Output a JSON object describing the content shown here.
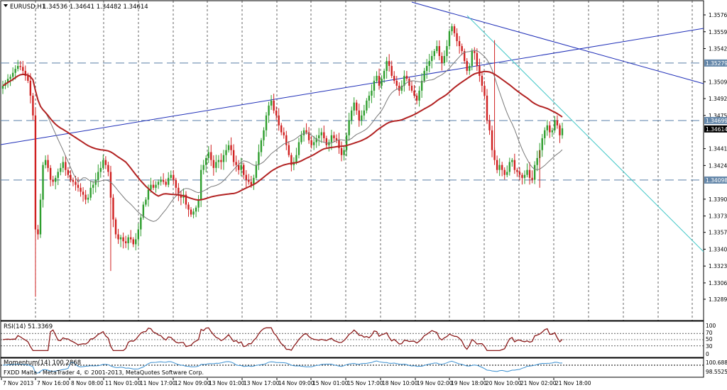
{
  "header": {
    "symbol_label": "EURUSD,H1",
    "ohlc_label": "1.34536 1.34641 1.34482 1.34614"
  },
  "rsi_panel": {
    "label": "RSI(14) 51.3369",
    "levels": [
      "100",
      "70",
      "50",
      "30",
      "0"
    ]
  },
  "momentum_panel": {
    "label": "Momentum(14) 100.2868",
    "levels": [
      "100.6887",
      "98.5525"
    ]
  },
  "copyright": "FXDD Malta - MetaTrader 4, © 2001-2013, MetaQuotes Software Corp.",
  "colors": {
    "candles": "#2e9e2e",
    "candles_down": "#d02020",
    "ma_slow": "#b22222",
    "ma_fast": "#7a7a7a",
    "trend_blue": "#1f2fb8",
    "trend_cyan": "#45c8c8",
    "hline": "#5a7fa8",
    "rsi_line": "#8b1a1a",
    "momentum_line": "#3a8fd0"
  },
  "chart_data": {
    "type": "candlestick",
    "symbol": "EURUSD",
    "timeframe": "H1",
    "ylim": [
      1.3282,
      1.3585
    ],
    "price_ticks": [
      1.35765,
      1.35595,
      1.35425,
      1.3509,
      1.3492,
      1.3475,
      1.34415,
      1.34245,
      1.33905,
      1.33735,
      1.3357,
      1.334,
      1.3323,
      1.3306,
      1.32895
    ],
    "highlighted_levels": [
      {
        "label": "1.35279",
        "value": 1.35279,
        "style": "boxed"
      },
      {
        "label": "1.34699",
        "value": 1.34699,
        "style": "boxed"
      },
      {
        "label": "1.34614",
        "value": 1.34614,
        "style": "current"
      },
      {
        "label": "1.34098",
        "value": 1.34098,
        "style": "boxed"
      }
    ],
    "x_labels": [
      "7 Nov 2013",
      "7 Nov 16:00",
      "8 Nov 08:00",
      "11 Nov 01:00",
      "11 Nov 17:00",
      "12 Nov 09:00",
      "13 Nov 01:00",
      "13 Nov 17:00",
      "14 Nov 09:00",
      "15 Nov 01:00",
      "15 Nov 17:00",
      "18 Nov 10:00",
      "19 Nov 02:00",
      "19 Nov 18:00",
      "20 Nov 10:00",
      "21 Nov 02:00",
      "21 Nov 18:00"
    ],
    "close_path": [
      1.3505,
      1.3508,
      1.3512,
      1.3514,
      1.3518,
      1.3522,
      1.3525,
      1.3524,
      1.352,
      1.3515,
      1.351,
      1.3495,
      1.3475,
      1.336,
      1.3355,
      1.339,
      1.3425,
      1.343,
      1.3422,
      1.341,
      1.3408,
      1.3412,
      1.3418,
      1.3422,
      1.3428,
      1.342,
      1.3415,
      1.341,
      1.3408,
      1.3405,
      1.3402,
      1.3398,
      1.3395,
      1.339,
      1.3392,
      1.3402,
      1.3405,
      1.341,
      1.3418,
      1.3422,
      1.343,
      1.3425,
      1.3418,
      1.3392,
      1.337,
      1.3355,
      1.335,
      1.3352,
      1.3348,
      1.3346,
      1.3352,
      1.335,
      1.3345,
      1.335,
      1.336,
      1.3372,
      1.3385,
      1.339,
      1.34,
      1.3405,
      1.3402,
      1.3405,
      1.3408,
      1.341,
      1.3408,
      1.3405,
      1.3412,
      1.3415,
      1.341,
      1.3402,
      1.3395,
      1.3392,
      1.3395,
      1.3385,
      1.338,
      1.3375,
      1.3378,
      1.3382,
      1.339,
      1.342,
      1.3425,
      1.3432,
      1.3438,
      1.343,
      1.3422,
      1.3428,
      1.343,
      1.3428,
      1.3435,
      1.344,
      1.3445,
      1.344,
      1.3428,
      1.3425,
      1.342,
      1.3425,
      1.3415,
      1.341,
      1.3408,
      1.3405,
      1.3412,
      1.3425,
      1.3438,
      1.345,
      1.346,
      1.3475,
      1.3485,
      1.349,
      1.348,
      1.3475,
      1.3465,
      1.3458,
      1.3455,
      1.3445,
      1.3435,
      1.3425,
      1.3428,
      1.3435,
      1.3448,
      1.3455,
      1.346,
      1.3458,
      1.345,
      1.3445,
      1.3448,
      1.3452,
      1.3455,
      1.3458,
      1.3452,
      1.3445,
      1.3448,
      1.3455,
      1.3452,
      1.345,
      1.3442,
      1.3435,
      1.344,
      1.3455,
      1.347,
      1.348,
      1.3488,
      1.348,
      1.347,
      1.3475,
      1.348,
      1.349,
      1.3495,
      1.35,
      1.351,
      1.3515,
      1.3505,
      1.3512,
      1.352,
      1.353,
      1.3525,
      1.3515,
      1.351,
      1.3505,
      1.35,
      1.3505,
      1.3515,
      1.3512,
      1.3505,
      1.35,
      1.3495,
      1.349,
      1.35,
      1.351,
      1.352,
      1.3525,
      1.353,
      1.3535,
      1.354,
      1.3545,
      1.3535,
      1.3528,
      1.3535,
      1.3545,
      1.356,
      1.3565,
      1.3558,
      1.355,
      1.3545,
      1.354,
      1.353,
      1.352,
      1.3525,
      1.354,
      1.3538,
      1.3525,
      1.3515,
      1.3505,
      1.3495,
      1.347,
      1.346,
      1.344,
      1.343,
      1.342,
      1.3425,
      1.342,
      1.3415,
      1.3418,
      1.3428,
      1.343,
      1.342,
      1.3418,
      1.3415,
      1.3412,
      1.3415,
      1.342,
      1.3412,
      1.341,
      1.3425,
      1.3432,
      1.344,
      1.3452,
      1.346,
      1.3465,
      1.3458,
      1.346,
      1.347,
      1.3465,
      1.3455,
      1.3462
    ]
  }
}
